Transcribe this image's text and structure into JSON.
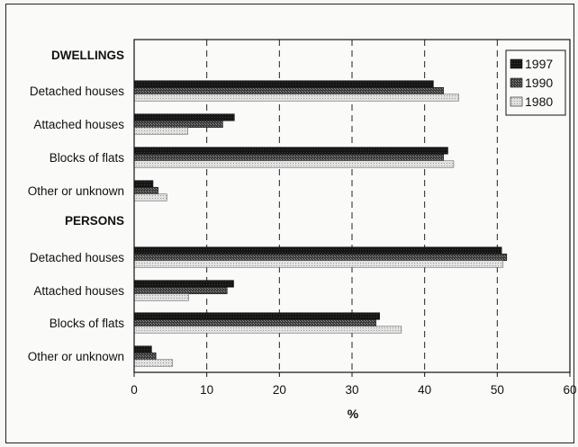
{
  "chart_data": {
    "type": "bar",
    "orientation": "horizontal",
    "xlabel": "%",
    "xlim": [
      0,
      60
    ],
    "xticks": [
      "0",
      "10",
      "20",
      "30",
      "40",
      "50",
      "60"
    ],
    "grid": "vertical dashed",
    "legend_position": "top-right",
    "groups": [
      {
        "title": "DWELLINGS",
        "categories": [
          "Detached houses",
          "Attached houses",
          "Blocks of flats",
          "Other or unknown"
        ],
        "series": [
          {
            "name": "1997",
            "values": [
              41.2,
              13.8,
              43.2,
              2.6
            ]
          },
          {
            "name": "1990",
            "values": [
              42.6,
              12.2,
              42.6,
              3.3
            ]
          },
          {
            "name": "1980",
            "values": [
              44.7,
              7.4,
              44.0,
              4.5
            ]
          }
        ]
      },
      {
        "title": "PERSONS",
        "categories": [
          "Detached houses",
          "Attached houses",
          "Blocks of flats",
          "Other or unknown"
        ],
        "series": [
          {
            "name": "1997",
            "values": [
              50.6,
              13.7,
              33.8,
              2.4
            ]
          },
          {
            "name": "1990",
            "values": [
              51.3,
              12.8,
              33.3,
              3.0
            ]
          },
          {
            "name": "1980",
            "values": [
              50.8,
              7.5,
              36.8,
              5.3
            ]
          }
        ]
      }
    ],
    "colors": {
      "1997": "#1a1a1a",
      "1990": "#555555",
      "1980": "#cfcfcf"
    }
  }
}
